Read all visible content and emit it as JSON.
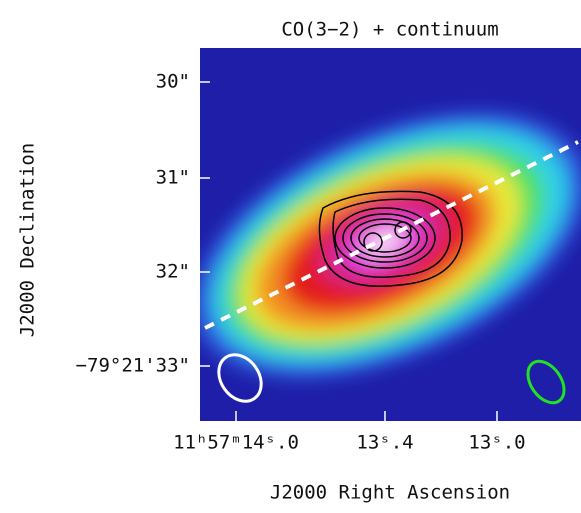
{
  "title": "CO(3−2) + continuum",
  "x_axis": {
    "label": "J2000 Right Ascension",
    "ticks": [
      "11ʰ57ᵐ14ˢ.0",
      "13ˢ.4",
      "13ˢ.0"
    ]
  },
  "y_axis": {
    "label": "J2000 Declination",
    "ticks": [
      "30\"",
      "31\"",
      "32\"",
      "−79°21'33\""
    ]
  }
}
